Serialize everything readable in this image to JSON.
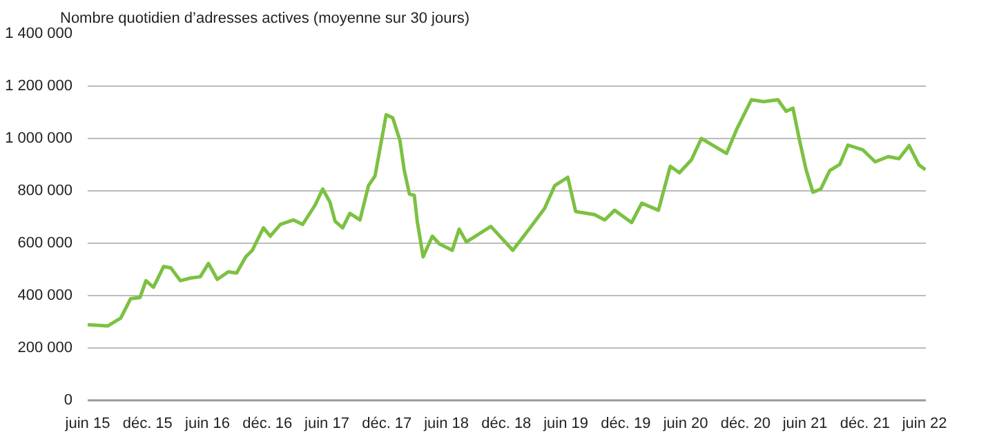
{
  "chart_data": {
    "type": "line",
    "title": "Nombre quotidien d’adresses actives (moyenne sur 30 jours)",
    "x": [
      "2015-06-01",
      "2015-08-01",
      "2015-09-10",
      "2015-10-10",
      "2015-11-08",
      "2015-11-26",
      "2015-12-19",
      "2016-01-19",
      "2016-02-10",
      "2016-03-10",
      "2016-04-10",
      "2016-05-10",
      "2016-06-04",
      "2016-07-01",
      "2016-08-04",
      "2016-08-29",
      "2016-09-26",
      "2016-10-16",
      "2016-11-19",
      "2016-12-10",
      "2017-01-10",
      "2017-02-19",
      "2017-03-19",
      "2017-04-26",
      "2017-05-19",
      "2017-06-10",
      "2017-06-26",
      "2017-07-19",
      "2017-08-10",
      "2017-09-10",
      "2017-10-06",
      "2017-10-26",
      "2017-11-29",
      "2017-12-19",
      "2018-01-10",
      "2018-01-23",
      "2018-02-08",
      "2018-02-23",
      "2018-03-04",
      "2018-03-22",
      "2018-04-19",
      "2018-05-10",
      "2018-06-19",
      "2018-07-10",
      "2018-08-01",
      "2018-10-15",
      "2018-12-21",
      "2019-02-12",
      "2019-03-28",
      "2019-04-28",
      "2019-06-07",
      "2019-07-01",
      "2019-08-28",
      "2019-09-28",
      "2019-10-28",
      "2019-12-19",
      "2020-01-19",
      "2020-03-10",
      "2020-04-15",
      "2020-05-13",
      "2020-06-19",
      "2020-07-19",
      "2020-10-04",
      "2020-11-04",
      "2020-12-19",
      "2021-01-25",
      "2021-03-10",
      "2021-04-04",
      "2021-04-25",
      "2021-05-13",
      "2021-06-04",
      "2021-06-25",
      "2021-07-19",
      "2021-08-15",
      "2021-09-15",
      "2021-10-10",
      "2021-11-25",
      "2022-01-01",
      "2022-02-10",
      "2022-03-15",
      "2022-04-15",
      "2022-05-15",
      "2022-06-04"
    ],
    "series": [
      {
        "color": "#7cc142",
        "values": [
          289000,
          284000,
          314000,
          388000,
          393000,
          457000,
          432000,
          511000,
          506000,
          457000,
          467000,
          472000,
          523000,
          462000,
          491000,
          486000,
          548000,
          573000,
          659000,
          627000,
          672000,
          689000,
          672000,
          746000,
          807000,
          758000,
          684000,
          659000,
          714000,
          689000,
          820000,
          857000,
          1091000,
          1079000,
          993000,
          881000,
          788000,
          783000,
          684000,
          548000,
          627000,
          598000,
          573000,
          654000,
          605000,
          664000,
          573000,
          659000,
          733000,
          820000,
          852000,
          721000,
          709000,
          689000,
          726000,
          679000,
          753000,
          726000,
          894000,
          869000,
          919000,
          1000000,
          943000,
          1035000,
          1148000,
          1141000,
          1148000,
          1104000,
          1116000,
          1005000,
          881000,
          795000,
          807000,
          877000,
          901000,
          975000,
          956000,
          911000,
          931000,
          923000,
          973000,
          899000,
          881000
        ]
      }
    ],
    "xlim": [
      "2015-06-01",
      "2022-06-05"
    ],
    "xticks": [
      {
        "value": "2015-06-01",
        "label": "juin 15"
      },
      {
        "value": "2015-12-01",
        "label": "déc. 15"
      },
      {
        "value": "2016-06-01",
        "label": "juin 16"
      },
      {
        "value": "2016-12-01",
        "label": "déc. 16"
      },
      {
        "value": "2017-06-01",
        "label": "juin 17"
      },
      {
        "value": "2017-12-01",
        "label": "déc. 17"
      },
      {
        "value": "2018-06-01",
        "label": "juin 18"
      },
      {
        "value": "2018-12-01",
        "label": "déc. 18"
      },
      {
        "value": "2019-06-01",
        "label": "juin 19"
      },
      {
        "value": "2019-12-01",
        "label": "déc. 19"
      },
      {
        "value": "2020-06-01",
        "label": "juin 20"
      },
      {
        "value": "2020-12-01",
        "label": "déc. 20"
      },
      {
        "value": "2021-06-01",
        "label": "juin 21"
      },
      {
        "value": "2021-12-01",
        "label": "déc. 21"
      },
      {
        "value": "2022-06-01",
        "label": "juin 22"
      }
    ],
    "ylim": [
      0,
      1400000
    ],
    "yticks": [
      {
        "value": 0,
        "label": "0"
      },
      {
        "value": 200000,
        "label": "200 000"
      },
      {
        "value": 400000,
        "label": "400 000"
      },
      {
        "value": 600000,
        "label": "600 000"
      },
      {
        "value": 800000,
        "label": "800 000"
      },
      {
        "value": 1000000,
        "label": "1 000 000"
      },
      {
        "value": 1200000,
        "label": "1 200 000"
      },
      {
        "value": 1400000,
        "label": "1 400 000"
      }
    ],
    "grid": "y",
    "marker": "none",
    "line_style": "solid"
  }
}
